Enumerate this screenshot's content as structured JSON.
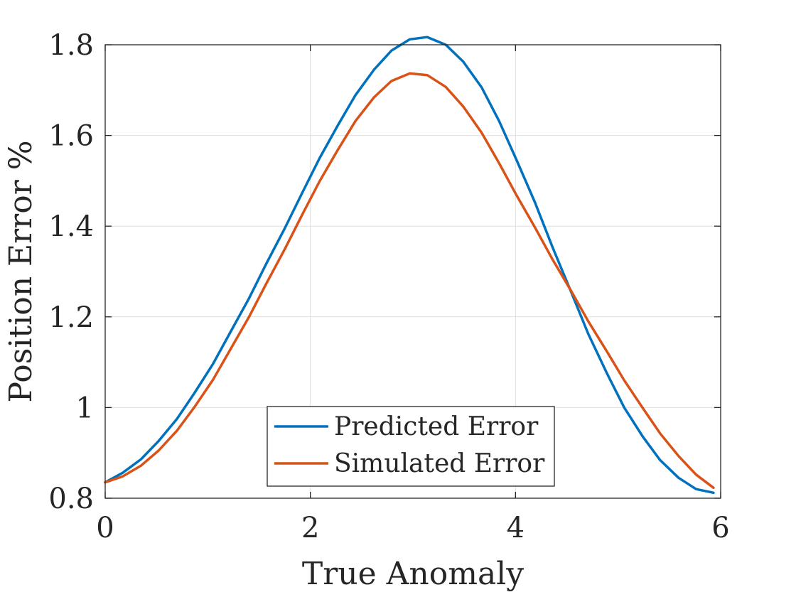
{
  "chart_data": {
    "type": "line",
    "xlabel": "True Anomaly",
    "ylabel": "Position Error %",
    "xlim": [
      0,
      6
    ],
    "ylim": [
      0.8,
      1.8
    ],
    "xticks": [
      0,
      2,
      4,
      6
    ],
    "xtick_labels": [
      "0",
      "2",
      "4",
      "6"
    ],
    "yticks": [
      0.8,
      1.0,
      1.2,
      1.4,
      1.6,
      1.8
    ],
    "ytick_labels": [
      "0.8",
      "1",
      "1.2",
      "1.4",
      "1.6",
      "1.8"
    ],
    "grid": true,
    "legend_position": "bottom-center",
    "series": [
      {
        "name": "Predicted Error",
        "color": "#0072BD",
        "x": [
          0.0,
          0.17,
          0.35,
          0.52,
          0.7,
          0.87,
          1.05,
          1.22,
          1.4,
          1.57,
          1.75,
          1.92,
          2.09,
          2.27,
          2.44,
          2.62,
          2.79,
          2.97,
          3.14,
          3.32,
          3.49,
          3.67,
          3.84,
          4.01,
          4.19,
          4.36,
          4.54,
          4.71,
          4.89,
          5.06,
          5.24,
          5.41,
          5.59,
          5.76,
          5.93
        ],
        "values": [
          0.835,
          0.856,
          0.886,
          0.926,
          0.975,
          1.032,
          1.096,
          1.166,
          1.24,
          1.317,
          1.395,
          1.473,
          1.55,
          1.623,
          1.689,
          1.745,
          1.787,
          1.812,
          1.817,
          1.8,
          1.763,
          1.706,
          1.632,
          1.546,
          1.452,
          1.354,
          1.256,
          1.162,
          1.076,
          1.0,
          0.936,
          0.884,
          0.845,
          0.82,
          0.812
        ]
      },
      {
        "name": "Simulated Error",
        "color": "#D95319",
        "x": [
          0.0,
          0.17,
          0.35,
          0.52,
          0.7,
          0.87,
          1.05,
          1.22,
          1.4,
          1.57,
          1.75,
          1.92,
          2.09,
          2.27,
          2.44,
          2.62,
          2.79,
          2.97,
          3.14,
          3.32,
          3.49,
          3.67,
          3.84,
          4.01,
          4.19,
          4.36,
          4.54,
          4.71,
          4.89,
          5.06,
          5.24,
          5.41,
          5.59,
          5.76,
          5.93
        ],
        "values": [
          0.835,
          0.848,
          0.872,
          0.905,
          0.949,
          1.001,
          1.061,
          1.128,
          1.199,
          1.273,
          1.349,
          1.425,
          1.499,
          1.569,
          1.632,
          1.684,
          1.72,
          1.737,
          1.733,
          1.707,
          1.664,
          1.606,
          1.539,
          1.468,
          1.397,
          1.327,
          1.258,
          1.19,
          1.124,
          1.06,
          0.999,
          0.943,
          0.893,
          0.852,
          0.823
        ]
      }
    ]
  }
}
